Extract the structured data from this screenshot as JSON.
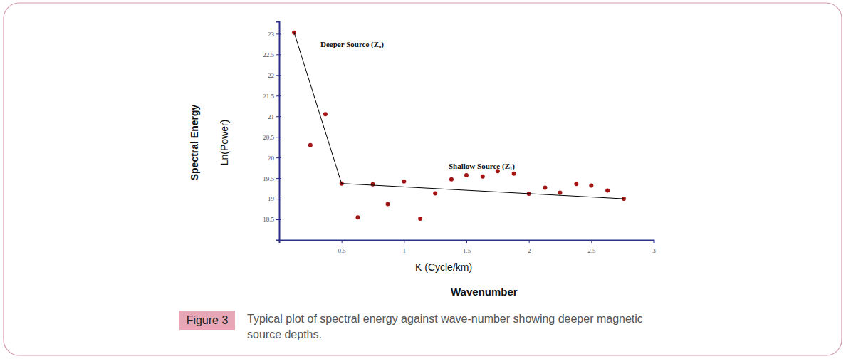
{
  "chart_data": {
    "type": "scatter",
    "xlabel": [
      "K (Cycle/km)",
      "Wavenumber"
    ],
    "ylabel": [
      "Spectral Energy",
      "Ln(Power)"
    ],
    "annotations": [
      "Deeper Source (Z₀)",
      "Shallow Source (Z₁)"
    ],
    "figure_label": "Figure 3",
    "caption": "Typical plot of spectral energy against wave-number showing deeper magnetic source depths.",
    "xlim": [
      0,
      3
    ],
    "xticks": [
      0.5,
      1,
      1.5,
      2,
      2.5,
      3
    ],
    "ylim": [
      18,
      23.3
    ],
    "yticks": [
      18.5,
      19,
      19.5,
      20,
      20.5,
      21,
      21.5,
      22,
      22.5,
      23
    ],
    "series": [
      {
        "type": "scatter",
        "color": "#a31515",
        "marker": "circle",
        "x": [
          0.12,
          0.25,
          0.37,
          0.5,
          0.63,
          0.75,
          0.87,
          1.0,
          1.13,
          1.25,
          1.38,
          1.5,
          1.63,
          1.75,
          1.88,
          2.0,
          2.13,
          2.25,
          2.38,
          2.5,
          2.63,
          2.76
        ],
        "values": [
          23.03,
          20.3,
          21.05,
          19.37,
          18.55,
          19.35,
          18.87,
          19.42,
          18.52,
          19.13,
          19.47,
          19.57,
          19.54,
          19.67,
          19.61,
          19.12,
          19.27,
          19.15,
          19.36,
          19.32,
          19.2,
          19.0
        ]
      },
      {
        "type": "line",
        "color": "#000000",
        "line_style": "solid",
        "x": [
          0.12,
          0.5
        ],
        "values": [
          23.03,
          19.37
        ]
      },
      {
        "type": "line",
        "color": "#000000",
        "line_style": "solid",
        "x": [
          0.5,
          2.76
        ],
        "values": [
          19.37,
          19.0
        ]
      }
    ]
  }
}
